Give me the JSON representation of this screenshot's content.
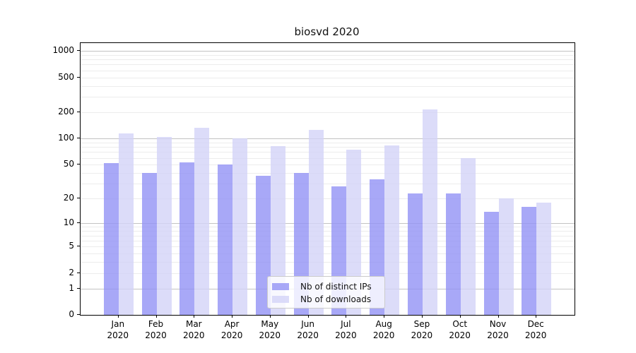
{
  "title": "biosvd 2020",
  "chart_data": {
    "type": "bar",
    "title": "biosvd 2020",
    "categories": [
      "Jan 2020",
      "Feb 2020",
      "Mar 2020",
      "Apr 2020",
      "May 2020",
      "Jun 2020",
      "Jul 2020",
      "Aug 2020",
      "Sep 2020",
      "Oct 2020",
      "Nov 2020",
      "Dec 2020"
    ],
    "x_tick_month": [
      "Jan",
      "Feb",
      "Mar",
      "Apr",
      "May",
      "Jun",
      "Jul",
      "Aug",
      "Sep",
      "Oct",
      "Nov",
      "Dec"
    ],
    "x_tick_year": "2020",
    "series": [
      {
        "name": "Nb of distinct IPs",
        "color": "rgba(146,146,245,0.8)",
        "values": [
          52,
          40,
          53,
          50,
          37,
          40,
          28,
          34,
          23,
          23,
          14,
          16
        ]
      },
      {
        "name": "Nb of downloads",
        "color": "rgba(211,211,247,0.8)",
        "values": [
          114,
          104,
          133,
          100,
          82,
          126,
          74,
          83,
          215,
          60,
          20,
          18
        ]
      }
    ],
    "xlabel": "",
    "ylabel": "",
    "yscale": "log1p",
    "y_ticks": [
      1000,
      500,
      200,
      100,
      50,
      20,
      10,
      5,
      2,
      1,
      0
    ],
    "y_tick_labels": [
      "1000",
      "500",
      "200",
      "100",
      "50",
      "20",
      "10",
      "5",
      "2",
      "1",
      "0"
    ],
    "ylim": [
      0,
      1250
    ],
    "grid": "horizontal major (1,10,100,1000) dark + minor (2-9 per decade) light",
    "grid_major_color": "#c3c3c3",
    "grid_minor_color": "#ececec",
    "legend_position": "inside lower-center",
    "legend_entries": [
      "Nb of distinct IPs",
      "Nb of downloads"
    ]
  }
}
